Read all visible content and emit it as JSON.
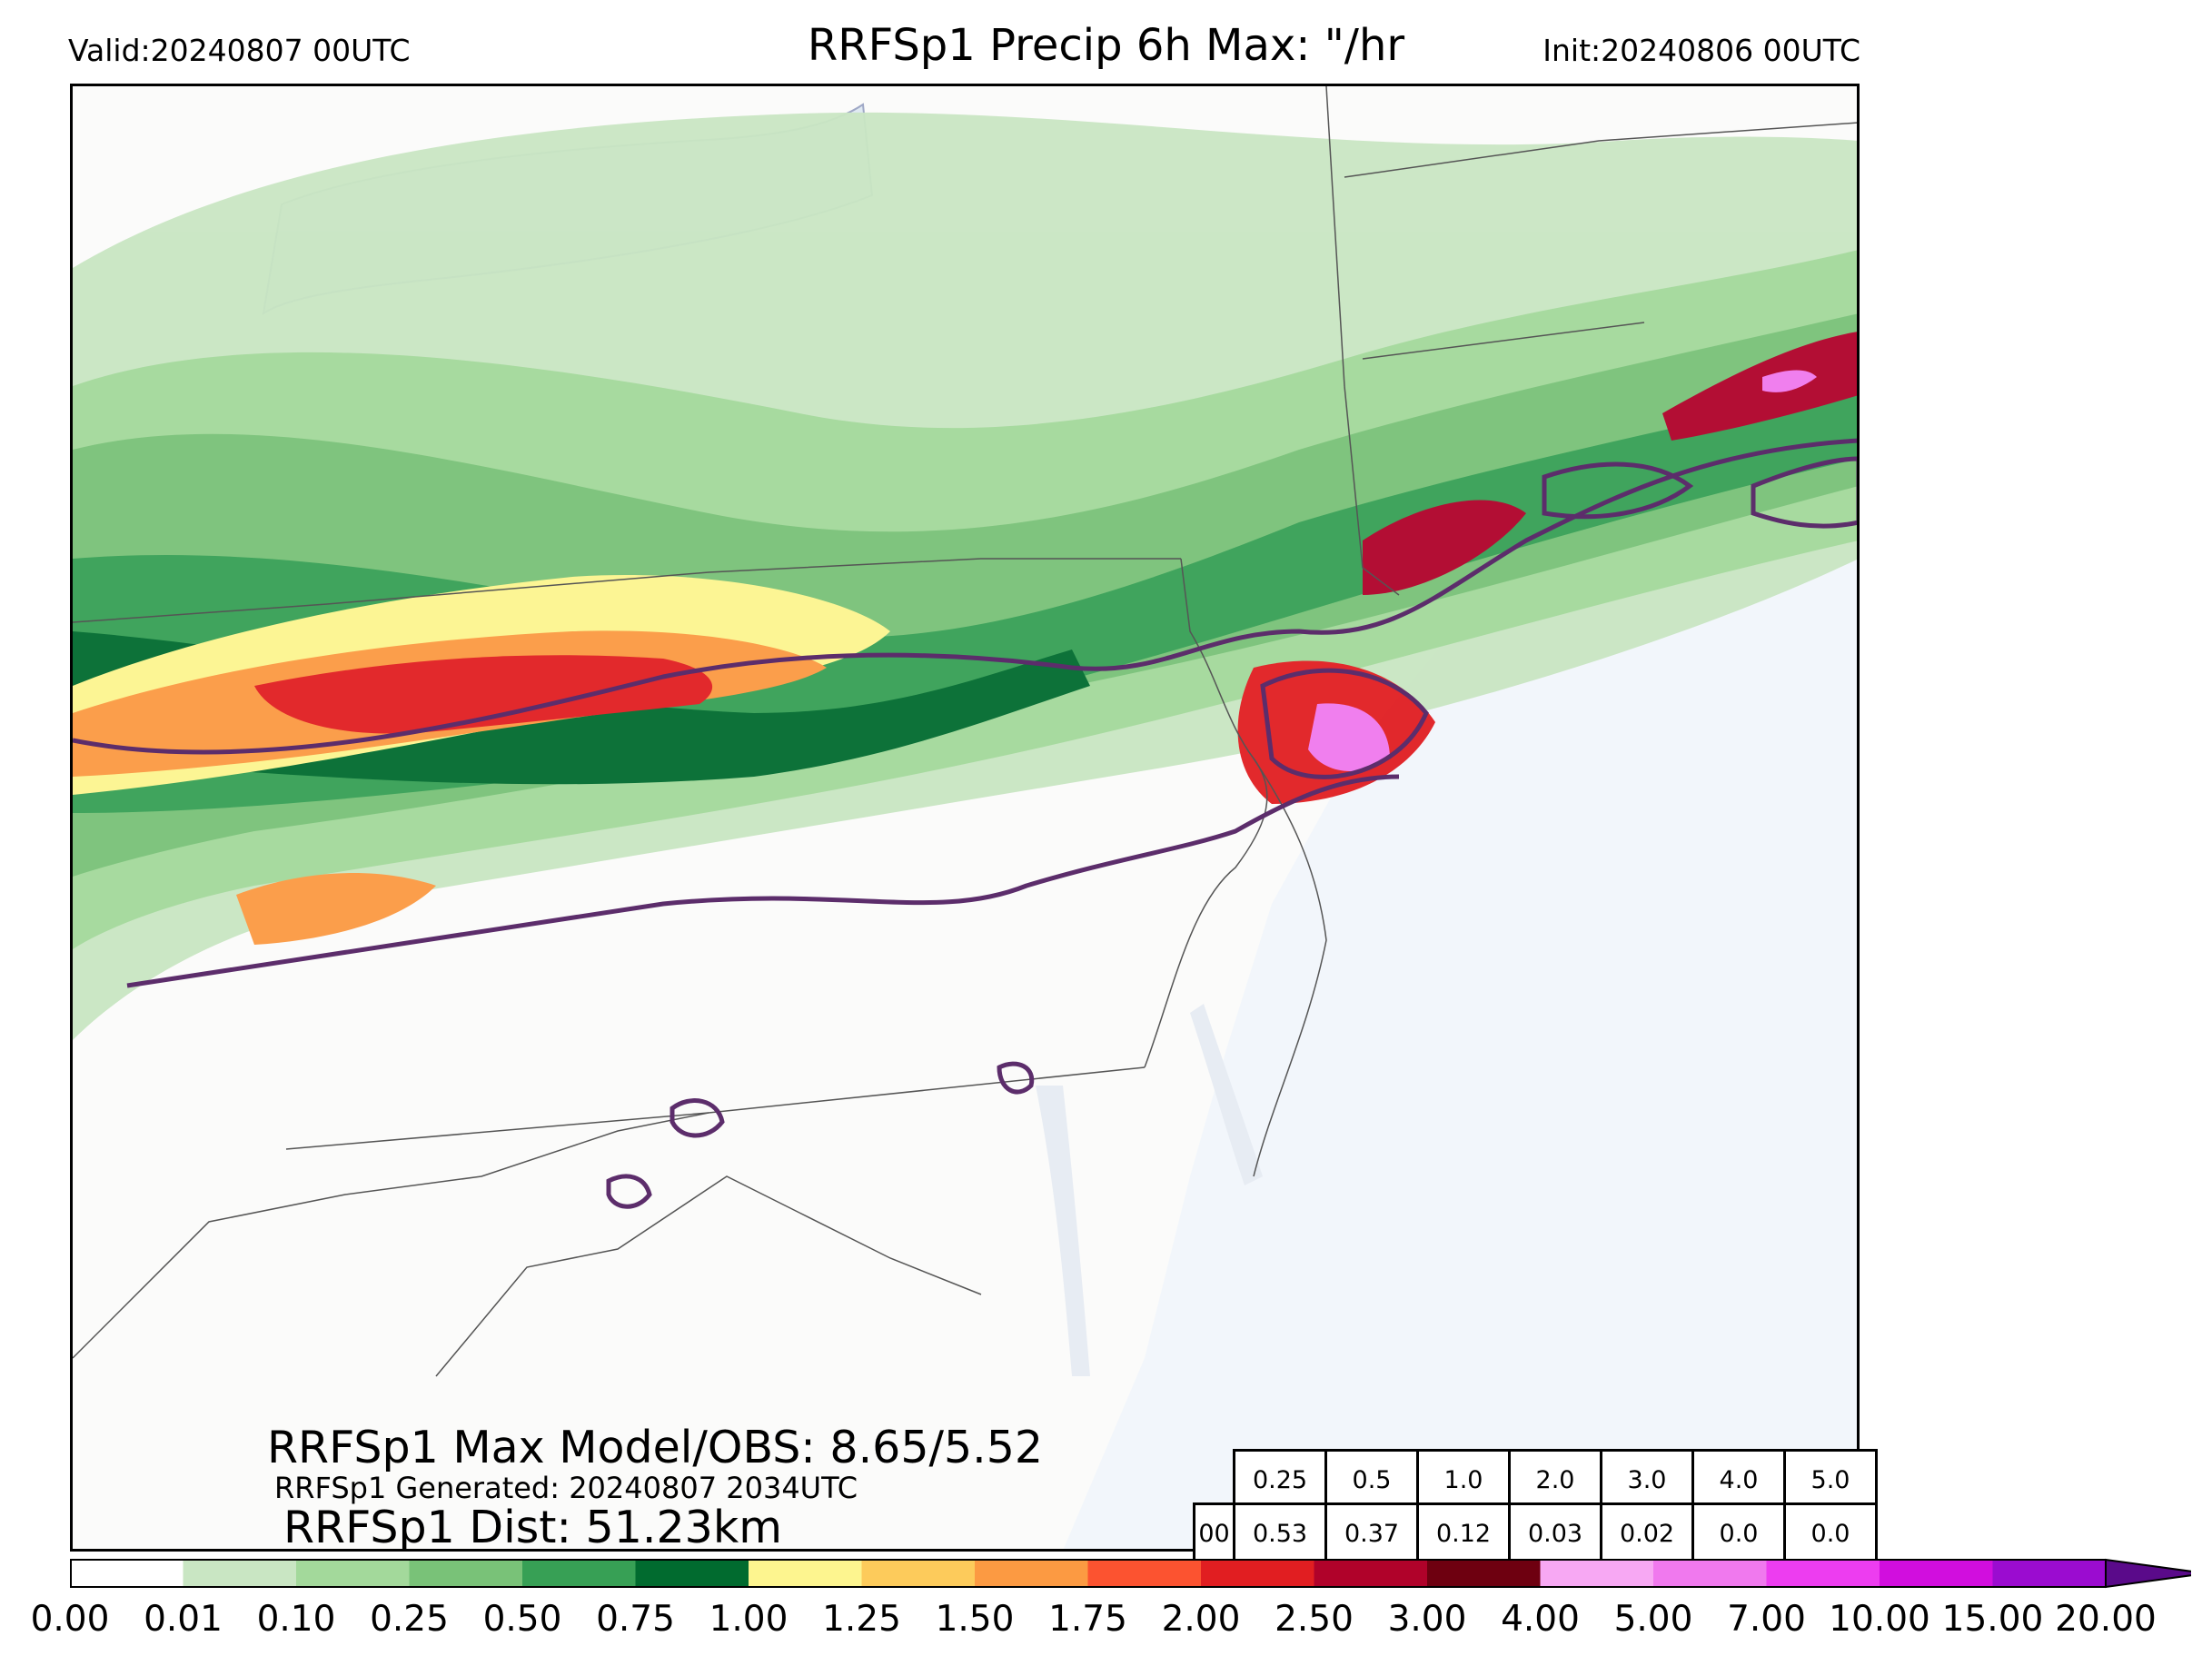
{
  "header": {
    "valid": "Valid:20240807 00UTC",
    "title": "RRFSp1 Precip 6h Max: \"/hr",
    "init": "Init:20240806 00UTC"
  },
  "stats": {
    "max_model_obs": "RRFSp1 Max Model/OBS: 8.65/5.52",
    "generated": "RRFSp1 Generated: 20240807 2034UTC",
    "distance": "RRFSp1 Dist: 51.23km"
  },
  "threshold_table": {
    "thresholds": [
      "0.25",
      "0.5",
      "1.0",
      "2.0",
      "3.0",
      "4.0",
      "5.0"
    ],
    "row_label": "00",
    "values": [
      "0.53",
      "0.37",
      "0.12",
      "0.03",
      "0.02",
      "0.0",
      "0.0"
    ]
  },
  "colorbar": {
    "ticks": [
      "0.00",
      "0.01",
      "0.10",
      "0.25",
      "0.50",
      "0.75",
      "1.00",
      "1.25",
      "1.50",
      "1.75",
      "2.00",
      "2.50",
      "3.00",
      "4.00",
      "5.00",
      "7.00",
      "10.00",
      "15.00",
      "20.00"
    ],
    "colors": [
      "#ffffff",
      "#c9e6c3",
      "#a3d99b",
      "#79c278",
      "#37a055",
      "#016b2f",
      "#fdf58f",
      "#fdcb5b",
      "#fc9a42",
      "#fc5330",
      "#e11e21",
      "#b0022a",
      "#6e0010",
      "#f7a8f3",
      "#f079ee",
      "#ed3df0",
      "#d10ede",
      "#9b0cd0"
    ],
    "extend_color": "#5a0a8a"
  },
  "map": {
    "land_color": "#fbfbfa",
    "water_color": "#f2f6fb",
    "obs_contour_color": "#5c2d6b"
  }
}
